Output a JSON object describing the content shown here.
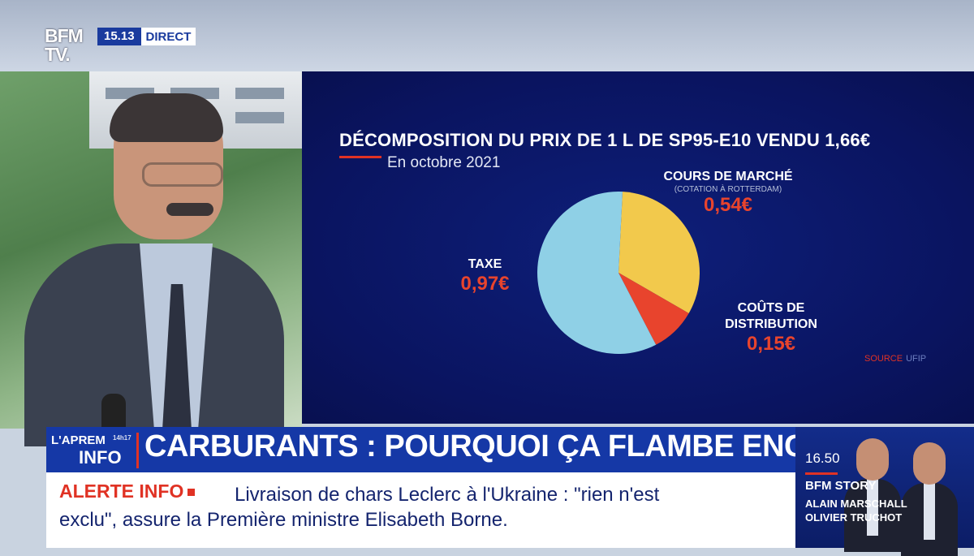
{
  "channel": {
    "logo": "BFM TV.",
    "time": "15.13",
    "live": "DIRECT"
  },
  "chart_data": {
    "type": "pie",
    "title": "DÉCOMPOSITION DU PRIX DE 1 L DE SP95-E10 VENDU 1,66€",
    "subtitle": "En octobre 2021",
    "slices": [
      {
        "name": "COURS DE MARCHÉ",
        "note": "(COTATION À ROTTERDAM)",
        "value": 0.54,
        "label": "0,54€",
        "color": "#f2c94c"
      },
      {
        "name": "COÛTS DE DISTRIBUTION",
        "value": 0.15,
        "label": "0,15€",
        "color": "#e8442d"
      },
      {
        "name": "TAXE",
        "value": 0.97,
        "label": "0,97€",
        "color": "#8fd0e6"
      }
    ],
    "source_key": "SOURCE",
    "source": "UFIP"
  },
  "labels": {
    "market_line1": "COURS DE MARCHÉ",
    "market_note": "(COTATION À ROTTERDAM)",
    "market_val": "0,54€",
    "tax_name": "TAXE",
    "tax_val": "0,97€",
    "dist_line1": "COÛTS DE",
    "dist_line2": "DISTRIBUTION",
    "dist_val": "0,15€"
  },
  "show": {
    "line1": "L'APREM",
    "line2": "INFO",
    "time": "14h17"
  },
  "headline": "CARBURANTS : POURQUOI ÇA FLAMBE ENCORE",
  "ticker": {
    "alert": "ALERTE INFO",
    "line1": "Livraison de chars Leclerc à l'Ukraine : \"rien n'est",
    "line2": "exclu\", assure la Première ministre Elisabeth Borne."
  },
  "next": {
    "time": "16.50",
    "show": "BFM STORY",
    "anchor1": "ALAIN MARSCHALL",
    "anchor2": "OLIVIER TRUCHOT"
  }
}
